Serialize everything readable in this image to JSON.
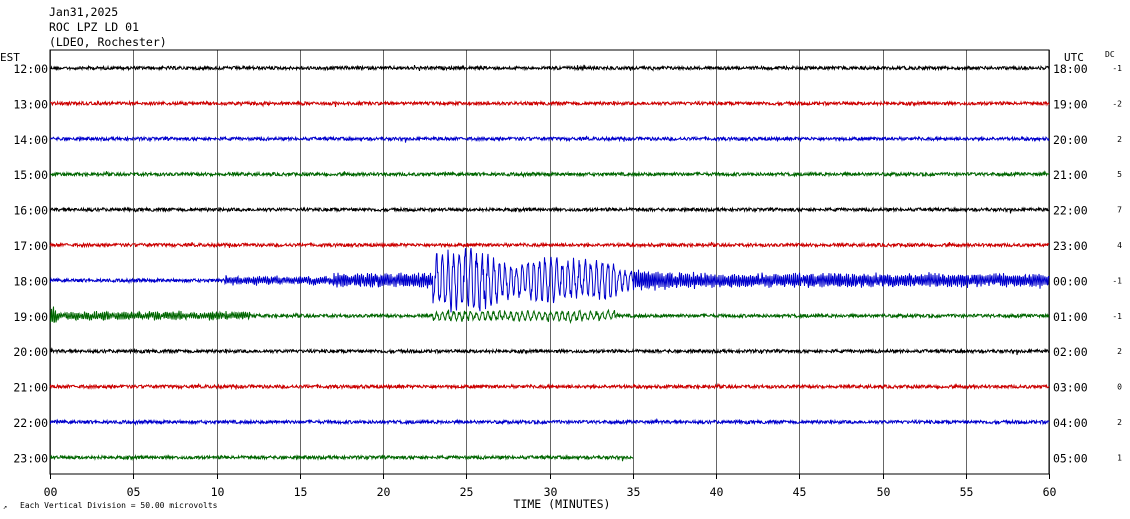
{
  "header": {
    "date": "Jan31,2025",
    "station": "ROC LPZ LD 01",
    "network": "(LDEO, Rochester)"
  },
  "labels": {
    "left_timezone": "EST",
    "right_timezone": "UTC",
    "dc_header": "DC",
    "x_axis_title": "TIME (MINUTES)",
    "scale_note": "Each Vertical Division =   50.00 microvolts"
  },
  "colors": {
    "trace_cycle": [
      "#000000",
      "#cc0000",
      "#0000cc",
      "#006600"
    ],
    "grid": "#000000"
  },
  "chart_data": {
    "type": "line",
    "subtype": "helicorder",
    "x_ticks": [
      "00",
      "05",
      "10",
      "15",
      "20",
      "25",
      "30",
      "35",
      "40",
      "45",
      "50",
      "55",
      "60"
    ],
    "xlim": [
      0,
      60
    ],
    "xlabel": "TIME (MINUTES)",
    "rows": [
      {
        "est": "12:00",
        "utc": "18:00",
        "dc": "-1",
        "end_minute": 60
      },
      {
        "est": "13:00",
        "utc": "19:00",
        "dc": "-2",
        "end_minute": 60
      },
      {
        "est": "14:00",
        "utc": "20:00",
        "dc": "2",
        "end_minute": 60
      },
      {
        "est": "15:00",
        "utc": "21:00",
        "dc": "5",
        "end_minute": 60
      },
      {
        "est": "16:00",
        "utc": "22:00",
        "dc": "7",
        "end_minute": 60
      },
      {
        "est": "17:00",
        "utc": "23:00",
        "dc": "4",
        "end_minute": 60
      },
      {
        "est": "18:00",
        "utc": "00:00",
        "dc": "-1",
        "end_minute": 60
      },
      {
        "est": "19:00",
        "utc": "01:00",
        "dc": "-1",
        "end_minute": 60
      },
      {
        "est": "20:00",
        "utc": "02:00",
        "dc": "2",
        "end_minute": 60
      },
      {
        "est": "21:00",
        "utc": "03:00",
        "dc": "0",
        "end_minute": 60
      },
      {
        "est": "22:00",
        "utc": "04:00",
        "dc": "2",
        "end_minute": 60
      },
      {
        "est": "23:00",
        "utc": "05:00",
        "dc": "1",
        "end_minute": 35
      }
    ],
    "event": {
      "row_est": "18:00",
      "start_minute": 10.5,
      "peak_minute": 27,
      "end_minute": 60,
      "coda_into_next_row_minutes": 12
    }
  }
}
